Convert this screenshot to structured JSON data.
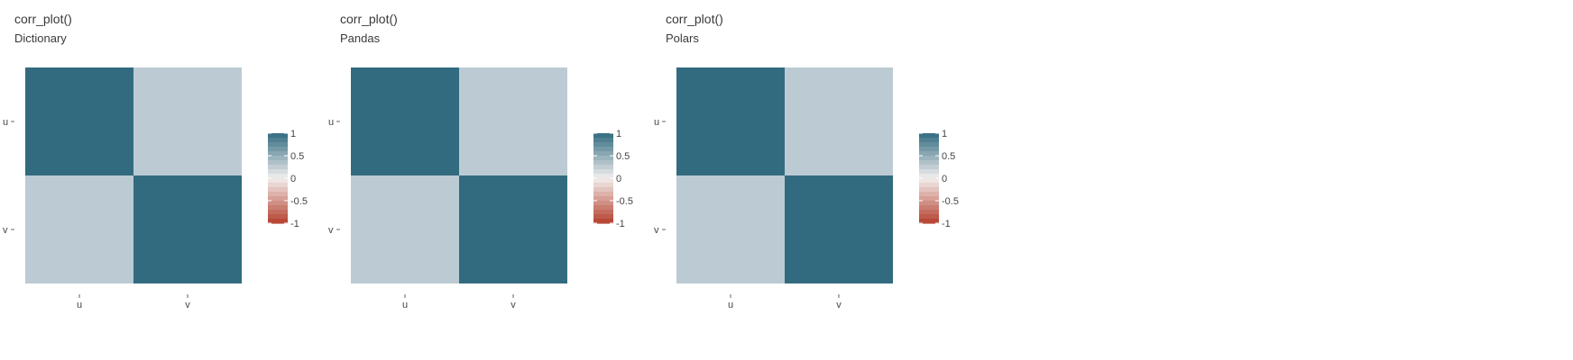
{
  "chart_data": [
    {
      "type": "heatmap",
      "title": "corr_plot()",
      "subtitle": "Dictionary",
      "x_categories": [
        "u",
        "v"
      ],
      "y_categories": [
        "u",
        "v"
      ],
      "values": [
        [
          1,
          0
        ],
        [
          0,
          1
        ]
      ],
      "legend": {
        "ticks": [
          "1",
          "0.5",
          "0",
          "-0.5",
          "-1"
        ],
        "min": -1,
        "max": 1,
        "position": "right"
      },
      "grid": false
    },
    {
      "type": "heatmap",
      "title": "corr_plot()",
      "subtitle": "Pandas",
      "x_categories": [
        "u",
        "v"
      ],
      "y_categories": [
        "u",
        "v"
      ],
      "values": [
        [
          1,
          0
        ],
        [
          0,
          1
        ]
      ],
      "legend": {
        "ticks": [
          "1",
          "0.5",
          "0",
          "-0.5",
          "-1"
        ],
        "min": -1,
        "max": 1,
        "position": "right"
      },
      "grid": false
    },
    {
      "type": "heatmap",
      "title": "corr_plot()",
      "subtitle": "Polars",
      "x_categories": [
        "u",
        "v"
      ],
      "y_categories": [
        "u",
        "v"
      ],
      "values": [
        [
          1,
          0
        ],
        [
          0,
          1
        ]
      ],
      "legend": {
        "ticks": [
          "1",
          "0.5",
          "0",
          "-0.5",
          "-1"
        ],
        "min": -1,
        "max": 1,
        "position": "right"
      },
      "grid": false
    }
  ],
  "colors": {
    "high": "#326b80",
    "mid": "#f2efee",
    "low": "#b5402d",
    "tick_text": "#444444"
  }
}
